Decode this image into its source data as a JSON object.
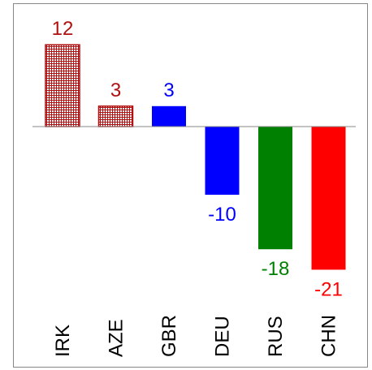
{
  "chart_data": {
    "type": "bar",
    "categories": [
      "IRK",
      "AZE",
      "GBR",
      "DEU",
      "RUS",
      "CHN"
    ],
    "values": [
      12,
      3,
      3,
      -10,
      -18,
      -21
    ],
    "colors": [
      "#b01010",
      "#b01010",
      "#0000ff",
      "#0000ff",
      "#008000",
      "#ff0000"
    ],
    "hatch": [
      true,
      true,
      false,
      false,
      false,
      false
    ],
    "ylim": [
      -24,
      15
    ]
  }
}
